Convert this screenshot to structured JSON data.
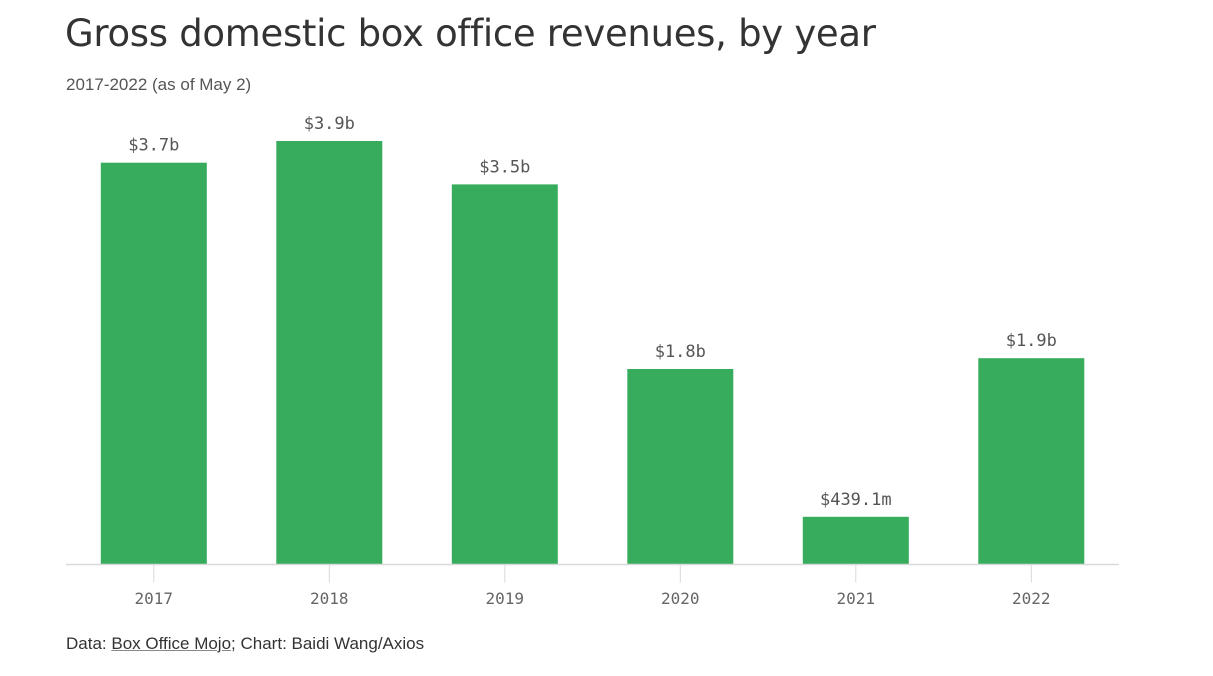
{
  "title": "Gross domestic box office revenues, by year",
  "subtitle": "2017-2022 (as of May 2)",
  "footer": {
    "data_prefix": "Data: ",
    "source_link": "Box Office Mojo",
    "credit": "; Chart: Baidi Wang/Axios"
  },
  "colors": {
    "bar": "#36ac5c",
    "axis": "#d9d9d9"
  },
  "chart_data": {
    "type": "bar",
    "categories": [
      "2017",
      "2018",
      "2019",
      "2020",
      "2021",
      "2022"
    ],
    "values": [
      3.7,
      3.9,
      3.5,
      1.8,
      0.4391,
      1.9
    ],
    "value_labels": [
      "$3.7b",
      "$3.9b",
      "$3.5b",
      "$1.8b",
      "$439.1m",
      "$1.9b"
    ],
    "unit": "billion USD",
    "ylim": [
      0,
      3.9
    ],
    "grid": false,
    "legend": "none"
  }
}
